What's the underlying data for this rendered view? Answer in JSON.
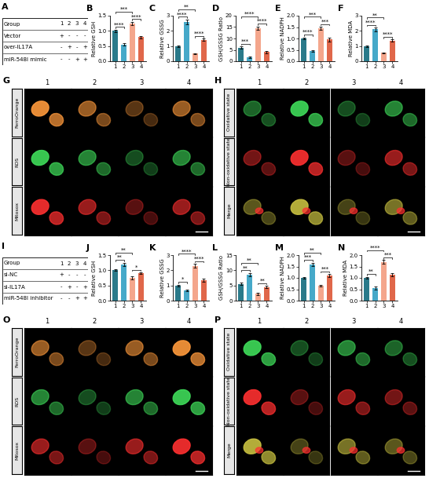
{
  "chart_data": [
    {
      "title": "B",
      "type": "bar",
      "ylabel": "Relative GSH",
      "categories": [
        "1",
        "2",
        "3",
        "4"
      ],
      "values": [
        1.0,
        0.55,
        1.25,
        0.8
      ],
      "errors": [
        0.04,
        0.04,
        0.05,
        0.04
      ],
      "colors": [
        "#2a7a8a",
        "#46a9c9",
        "#f4a68c",
        "#e0674a"
      ],
      "ylim": [
        0,
        1.5
      ],
      "yticks": [
        {
          "value": 0,
          "label": "0.0"
        },
        0.5,
        {
          "value": 1,
          "label": "1.0"
        },
        1.5
      ],
      "annotations": [
        {
          "pair": [
            "1",
            "2"
          ],
          "text": "****"
        },
        {
          "pair": [
            "3",
            "4"
          ],
          "text": "****"
        },
        {
          "pair": [
            "1",
            "3"
          ],
          "text": "***"
        }
      ]
    },
    {
      "title": "C",
      "type": "bar",
      "ylabel": "Relative GSSG",
      "categories": [
        "1",
        "2",
        "3",
        "4"
      ],
      "values": [
        1.0,
        2.6,
        0.5,
        1.4
      ],
      "errors": [
        0.06,
        0.15,
        0.04,
        0.08
      ],
      "colors": [
        "#2a7a8a",
        "#46a9c9",
        "#f4a68c",
        "#e0674a"
      ],
      "ylim": [
        0,
        3
      ],
      "yticks": [
        0,
        1,
        2,
        3
      ],
      "annotations": [
        {
          "pair": [
            "1",
            "2"
          ],
          "text": "****"
        },
        {
          "pair": [
            "3",
            "4"
          ],
          "text": "****"
        },
        {
          "pair": [
            "1",
            "3"
          ],
          "text": "**"
        }
      ]
    },
    {
      "title": "D",
      "type": "bar",
      "ylabel": "GSH/GSSG Ratio",
      "categories": [
        "1",
        "2",
        "3",
        "4"
      ],
      "values": [
        6,
        1.8,
        14.5,
        4
      ],
      "errors": [
        0.5,
        0.3,
        0.8,
        0.4
      ],
      "colors": [
        "#2a7a8a",
        "#46a9c9",
        "#f4a68c",
        "#e0674a"
      ],
      "ylim": [
        0,
        20
      ],
      "yticks": [
        0,
        5,
        10,
        15,
        20
      ],
      "annotations": [
        {
          "pair": [
            "1",
            "2"
          ],
          "text": "***"
        },
        {
          "pair": [
            "3",
            "4"
          ],
          "text": "****"
        },
        {
          "pair": [
            "1",
            "3"
          ],
          "text": "****"
        }
      ]
    },
    {
      "title": "E",
      "type": "bar",
      "ylabel": "Relative NADPH",
      "categories": [
        "1",
        "2",
        "3",
        "4"
      ],
      "values": [
        1.0,
        0.45,
        1.45,
        0.95
      ],
      "errors": [
        0.05,
        0.04,
        0.06,
        0.08
      ],
      "colors": [
        "#2a7a8a",
        "#46a9c9",
        "#f4a68c",
        "#e0674a"
      ],
      "ylim": [
        0,
        2
      ],
      "yticks": [
        {
          "value": 0,
          "label": "0.0"
        },
        0.5,
        {
          "value": 1,
          "label": "1.0"
        },
        1.5,
        {
          "value": 2,
          "label": "2.0"
        }
      ],
      "annotations": [
        {
          "pair": [
            "1",
            "2"
          ],
          "text": "****"
        },
        {
          "pair": [
            "3",
            "4"
          ],
          "text": "***"
        },
        {
          "pair": [
            "1",
            "3"
          ],
          "text": "***"
        }
      ]
    },
    {
      "title": "F",
      "type": "bar",
      "ylabel": "Relative MDA",
      "categories": [
        "1",
        "2",
        "3",
        "4"
      ],
      "values": [
        1.0,
        2.1,
        0.55,
        1.35
      ],
      "errors": [
        0.06,
        0.12,
        0.04,
        0.08
      ],
      "colors": [
        "#2a7a8a",
        "#46a9c9",
        "#f4a68c",
        "#e0674a"
      ],
      "ylim": [
        0,
        3
      ],
      "yticks": [
        0,
        1,
        2,
        3
      ],
      "annotations": [
        {
          "pair": [
            "1",
            "2"
          ],
          "text": "****"
        },
        {
          "pair": [
            "3",
            "4"
          ],
          "text": "****"
        },
        {
          "pair": [
            "1",
            "3"
          ],
          "text": "**"
        }
      ]
    },
    {
      "title": "J",
      "type": "bar",
      "ylabel": "Relative GSH",
      "categories": [
        "1",
        "2",
        "3",
        "4"
      ],
      "values": [
        1.0,
        1.2,
        0.75,
        0.9
      ],
      "errors": [
        0.03,
        0.05,
        0.05,
        0.03
      ],
      "colors": [
        "#2a7a8a",
        "#46a9c9",
        "#f4a68c",
        "#e0674a"
      ],
      "ylim": [
        0,
        1.5
      ],
      "yticks": [
        {
          "value": 0,
          "label": "0.0"
        },
        0.5,
        {
          "value": 1,
          "label": "1.0"
        },
        1.5
      ],
      "annotations": [
        {
          "pair": [
            "1",
            "2"
          ],
          "text": "**"
        },
        {
          "pair": [
            "3",
            "4"
          ],
          "text": "*"
        },
        {
          "pair": [
            "1",
            "3"
          ],
          "text": "**"
        }
      ]
    },
    {
      "title": "K",
      "type": "bar",
      "ylabel": "Relative GSSG",
      "categories": [
        "1",
        "2",
        "3",
        "4"
      ],
      "values": [
        1.0,
        0.65,
        2.3,
        1.35
      ],
      "errors": [
        0.05,
        0.05,
        0.12,
        0.1
      ],
      "colors": [
        "#2a7a8a",
        "#46a9c9",
        "#f4a68c",
        "#e0674a"
      ],
      "ylim": [
        0,
        3
      ],
      "yticks": [
        0,
        1,
        2,
        3
      ],
      "annotations": [
        {
          "pair": [
            "1",
            "2"
          ],
          "text": "*"
        },
        {
          "pair": [
            "3",
            "4"
          ],
          "text": "****"
        },
        {
          "pair": [
            "1",
            "3"
          ],
          "text": "****"
        }
      ]
    },
    {
      "title": "L",
      "type": "bar",
      "ylabel": "GSH/GSSG Ratio",
      "categories": [
        "1",
        "2",
        "3",
        "4"
      ],
      "values": [
        5.5,
        8.5,
        2.2,
        4.5
      ],
      "errors": [
        0.4,
        0.6,
        0.3,
        0.4
      ],
      "colors": [
        "#2a7a8a",
        "#46a9c9",
        "#f4a68c",
        "#e0674a"
      ],
      "ylim": [
        0,
        15
      ],
      "yticks": [
        0,
        5,
        10,
        15
      ],
      "annotations": [
        {
          "pair": [
            "1",
            "2"
          ],
          "text": "**"
        },
        {
          "pair": [
            "3",
            "4"
          ],
          "text": "**"
        },
        {
          "pair": [
            "1",
            "3"
          ],
          "text": "**"
        }
      ]
    },
    {
      "title": "M",
      "type": "bar",
      "ylabel": "Relative NADPH",
      "categories": [
        "1",
        "2",
        "3",
        "4"
      ],
      "values": [
        1.0,
        1.6,
        0.65,
        1.1
      ],
      "errors": [
        0.05,
        0.07,
        0.04,
        0.07
      ],
      "colors": [
        "#2a7a8a",
        "#46a9c9",
        "#f4a68c",
        "#e0674a"
      ],
      "ylim": [
        0,
        2
      ],
      "yticks": [
        {
          "value": 0,
          "label": "0.0"
        },
        0.5,
        {
          "value": 1,
          "label": "1.0"
        },
        1.5,
        {
          "value": 2,
          "label": "2.0"
        }
      ],
      "annotations": [
        {
          "pair": [
            "1",
            "2"
          ],
          "text": "***"
        },
        {
          "pair": [
            "3",
            "4"
          ],
          "text": "***"
        },
        {
          "pair": [
            "1",
            "3"
          ],
          "text": "**"
        }
      ]
    },
    {
      "title": "N",
      "type": "bar",
      "ylabel": "Relative MDA",
      "categories": [
        "1",
        "2",
        "3",
        "4"
      ],
      "values": [
        1.0,
        0.55,
        1.7,
        1.15
      ],
      "errors": [
        0.05,
        0.06,
        0.08,
        0.07
      ],
      "colors": [
        "#2a7a8a",
        "#46a9c9",
        "#f4a68c",
        "#e0674a"
      ],
      "ylim": [
        0,
        2
      ],
      "yticks": [
        {
          "value": 0,
          "label": "0.0"
        },
        0.5,
        {
          "value": 1,
          "label": "1.0"
        },
        1.5,
        {
          "value": 2,
          "label": "2.0"
        }
      ],
      "annotations": [
        {
          "pair": [
            "1",
            "2"
          ],
          "text": "**"
        },
        {
          "pair": [
            "3",
            "4"
          ],
          "text": "***"
        },
        {
          "pair": [
            "1",
            "3"
          ],
          "text": "****"
        }
      ]
    }
  ],
  "tables": [
    {
      "title": "A",
      "header": [
        "Group",
        "1",
        "2",
        "3",
        "4"
      ],
      "rows": [
        [
          "Vector",
          "+",
          "-",
          "-",
          "-"
        ],
        [
          "over-IL17A",
          "-",
          "+",
          "-",
          "+"
        ],
        [
          "miR-548l mimic",
          "-",
          "-",
          "+",
          "+"
        ]
      ]
    },
    {
      "title": "I",
      "header": [
        "Group",
        "1",
        "2",
        "3",
        "4"
      ],
      "rows": [
        [
          "si-NC",
          "+",
          "-",
          "-",
          "-"
        ],
        [
          "si-IL17A",
          "-",
          "+",
          "-",
          "+"
        ],
        [
          "miR-548l inhibitor",
          "-",
          "-",
          "+",
          "+"
        ]
      ]
    }
  ],
  "image_panels": [
    {
      "title": "G",
      "columns": [
        "1",
        "2",
        "3",
        "4"
      ],
      "rows": [
        "FerroOrange",
        "ROS",
        "Mitosox"
      ]
    },
    {
      "title": "H",
      "columns": [
        "1",
        "2",
        "3",
        "4"
      ],
      "rows": [
        "Oxidative state",
        "Non-oxidative state",
        "Merge"
      ]
    },
    {
      "title": "O",
      "columns": [
        "1",
        "2",
        "3",
        "4"
      ],
      "rows": [
        "FerroOrange",
        "ROS",
        "Mitosox"
      ]
    },
    {
      "title": "P",
      "columns": [
        "1",
        "2",
        "3",
        "4"
      ],
      "rows": [
        "Oxidative state",
        "Non-oxidative state",
        "Merge"
      ]
    }
  ]
}
